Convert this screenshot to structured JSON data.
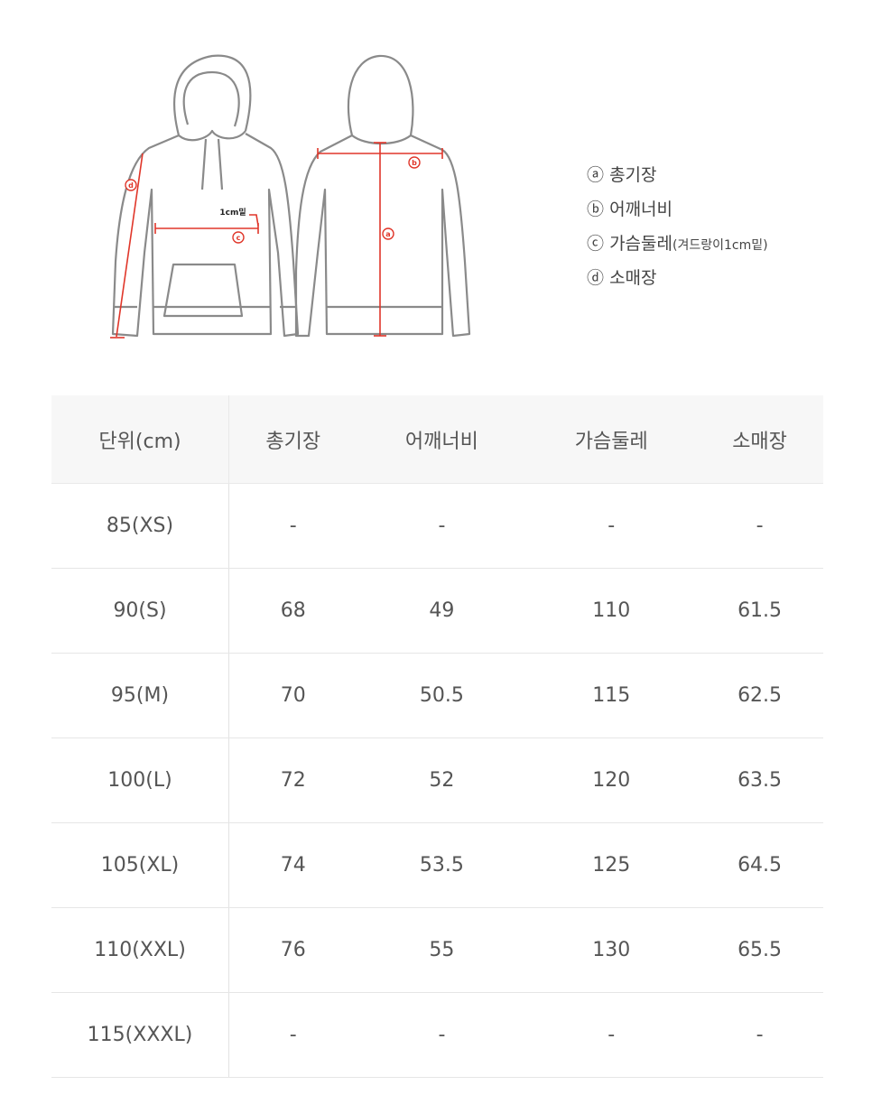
{
  "diagram": {
    "markers": {
      "a": "a",
      "b": "b",
      "c": "c",
      "d": "d"
    },
    "note": "1cm밑",
    "accent_color": "#e0362a",
    "outline_color": "#8a8a8a"
  },
  "legend": [
    {
      "symbol": "ⓐ",
      "label": "총기장",
      "note": ""
    },
    {
      "symbol": "ⓑ",
      "label": "어깨너비",
      "note": ""
    },
    {
      "symbol": "ⓒ",
      "label": "가슴둘레",
      "note": "(겨드랑이1cm밑)"
    },
    {
      "symbol": "ⓓ",
      "label": "소매장",
      "note": ""
    }
  ],
  "table": {
    "headers": [
      "단위(cm)",
      "총기장",
      "어깨너비",
      "가슴둘레",
      "소매장"
    ],
    "rows": [
      [
        "85(XS)",
        "-",
        "-",
        "-",
        "-"
      ],
      [
        "90(S)",
        "68",
        "49",
        "110",
        "61.5"
      ],
      [
        "95(M)",
        "70",
        "50.5",
        "115",
        "62.5"
      ],
      [
        "100(L)",
        "72",
        "52",
        "120",
        "63.5"
      ],
      [
        "105(XL)",
        "74",
        "53.5",
        "125",
        "64.5"
      ],
      [
        "110(XXL)",
        "76",
        "55",
        "130",
        "65.5"
      ],
      [
        "115(XXXL)",
        "-",
        "-",
        "-",
        "-"
      ]
    ]
  }
}
